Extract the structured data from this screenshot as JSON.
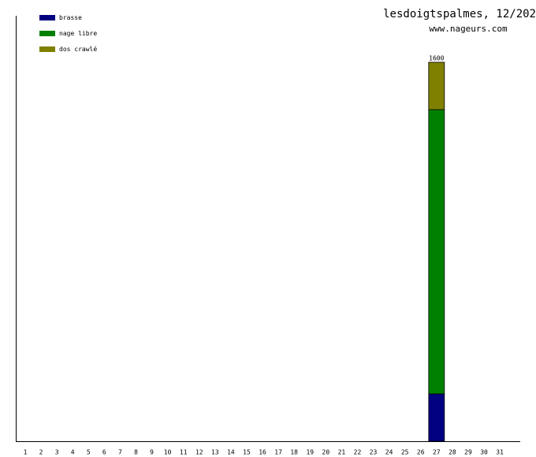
{
  "chart_data": {
    "type": "stacked-bar",
    "title": "lesdoigtspalmes, 12/202",
    "subtitle": "www.nageurs.com",
    "categories": [
      "1",
      "2",
      "3",
      "4",
      "5",
      "6",
      "7",
      "8",
      "9",
      "10",
      "11",
      "12",
      "13",
      "14",
      "15",
      "16",
      "17",
      "18",
      "19",
      "20",
      "21",
      "22",
      "23",
      "24",
      "25",
      "26",
      "27",
      "28",
      "29",
      "30",
      "31"
    ],
    "series": [
      {
        "name": "brasse",
        "color": "#000080",
        "values": [
          null,
          null,
          null,
          null,
          null,
          null,
          null,
          null,
          null,
          null,
          null,
          null,
          null,
          null,
          null,
          null,
          null,
          null,
          null,
          null,
          null,
          null,
          null,
          null,
          null,
          null,
          200,
          null,
          null,
          null,
          null
        ]
      },
      {
        "name": "nage libre",
        "color": "#008000",
        "values": [
          null,
          null,
          null,
          null,
          null,
          null,
          null,
          null,
          null,
          null,
          null,
          null,
          null,
          null,
          null,
          null,
          null,
          null,
          null,
          null,
          null,
          null,
          null,
          null,
          null,
          null,
          1200,
          null,
          null,
          null,
          null
        ]
      },
      {
        "name": "dos crawlé",
        "color": "#808000",
        "values": [
          null,
          null,
          null,
          null,
          null,
          null,
          null,
          null,
          null,
          null,
          null,
          null,
          null,
          null,
          null,
          null,
          null,
          null,
          null,
          null,
          null,
          null,
          null,
          null,
          null,
          null,
          200,
          null,
          null,
          null,
          null
        ]
      }
    ],
    "totals": [
      null,
      null,
      null,
      null,
      null,
      null,
      null,
      null,
      null,
      null,
      null,
      null,
      null,
      null,
      null,
      null,
      null,
      null,
      null,
      null,
      null,
      null,
      null,
      null,
      null,
      null,
      1600,
      null,
      null,
      null,
      null
    ]
  }
}
